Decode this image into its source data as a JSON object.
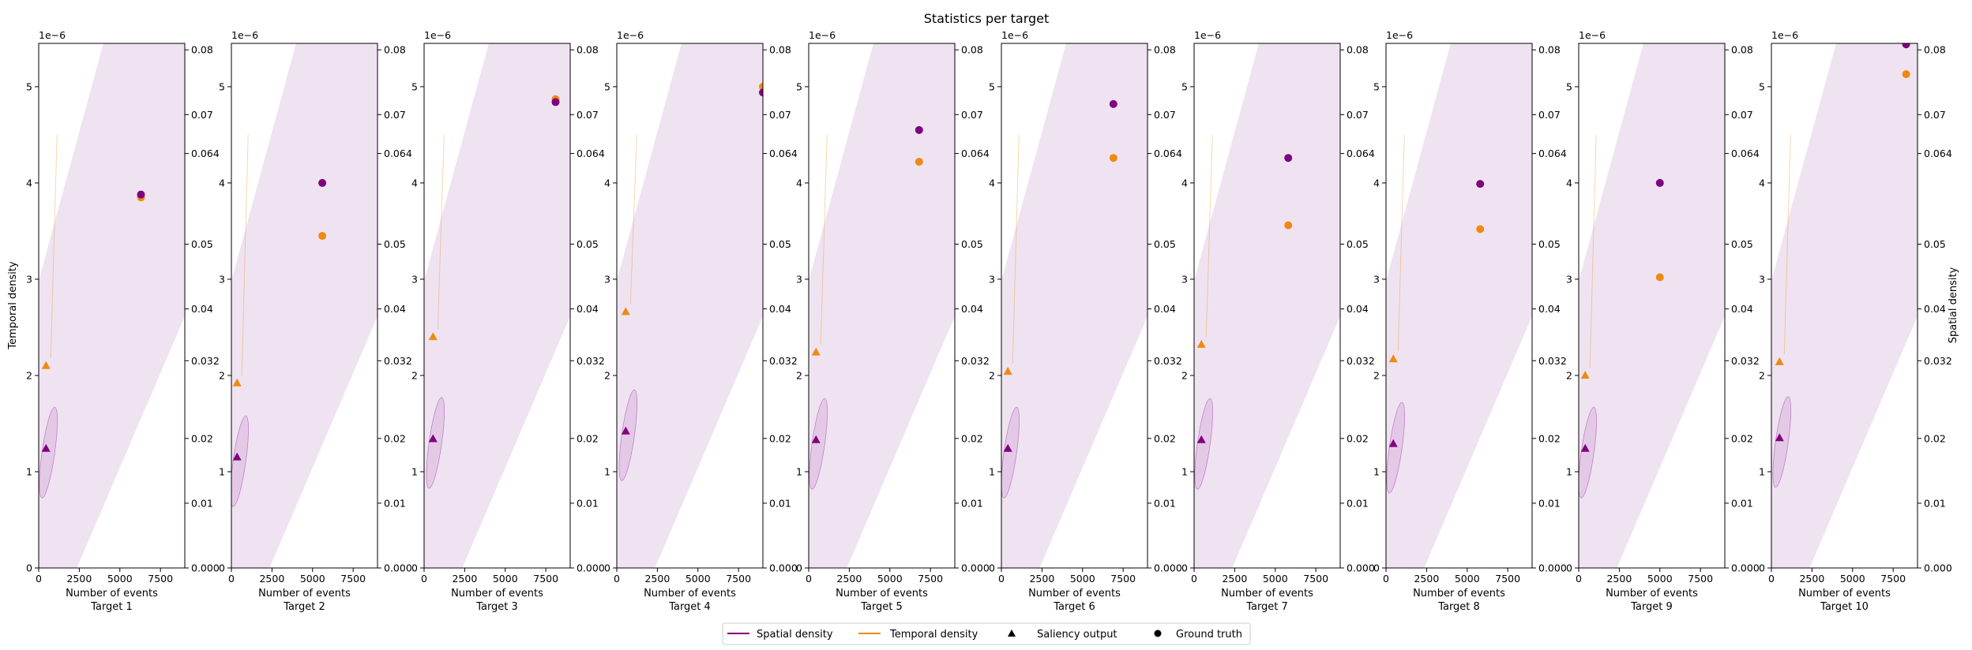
{
  "figure": {
    "title": "Statistics per target",
    "left_axis_label": "Temporal density",
    "right_axis_label": "Spatial density",
    "left_offset_label": "1e−6",
    "xlabel": "Number of events"
  },
  "legend": {
    "placement": "bottom-center",
    "items": [
      {
        "label": "Spatial density",
        "kind": "line",
        "color": "#800080"
      },
      {
        "label": "Temporal density",
        "kind": "line",
        "color": "#ee8a12"
      },
      {
        "label": "Saliency output",
        "kind": "triangle",
        "color": "#000000"
      },
      {
        "label": "Ground truth",
        "kind": "circle",
        "color": "#000000"
      }
    ]
  },
  "colors": {
    "spatial": "#800080",
    "temporal": "#ee8a12",
    "band": "#eee1f0"
  },
  "chart_data": {
    "type": "scatter",
    "subplot_count": 10,
    "xlim": [
      0,
      9000
    ],
    "xticks": [
      0,
      2500,
      5000,
      7500
    ],
    "left_ylim": [
      0,
      5.45
    ],
    "left_scale_exponent": -6,
    "left_yticks": [
      "0",
      "1",
      "2",
      "3",
      "4",
      "5"
    ],
    "right_ylim": [
      0,
      0.081
    ],
    "right_yticks": [
      "0.000",
      "0.01",
      "0.02",
      "0.032",
      "0.04",
      "0.05",
      "0.064",
      "0.07",
      "0.08"
    ],
    "right_ytick_values": [
      0,
      0.01,
      0.02,
      0.032,
      0.04,
      0.05,
      0.064,
      0.07,
      0.08
    ],
    "grid": false,
    "targets": [
      {
        "label": "Target 1",
        "saliency_x": 450,
        "saliency_temporal": 2.1,
        "saliency_spatial_axis": 1.24,
        "gt_x": 6300,
        "gt_temporal": 3.85,
        "gt_spatial_axis": 3.88
      },
      {
        "label": "Target 2",
        "saliency_x": 350,
        "saliency_temporal": 1.92,
        "saliency_spatial_axis": 1.15,
        "gt_x": 5600,
        "gt_temporal": 3.45,
        "gt_spatial_axis": 4.0
      },
      {
        "label": "Target 3",
        "saliency_x": 550,
        "saliency_temporal": 2.4,
        "saliency_spatial_axis": 1.34,
        "gt_x": 8100,
        "gt_temporal": 4.87,
        "gt_spatial_axis": 4.84
      },
      {
        "label": "Target 4",
        "saliency_x": 550,
        "saliency_temporal": 2.66,
        "saliency_spatial_axis": 1.42,
        "gt_x": 9000,
        "gt_temporal": 5.0,
        "gt_spatial_axis": 4.94
      },
      {
        "label": "Target 5",
        "saliency_x": 450,
        "saliency_temporal": 2.24,
        "saliency_spatial_axis": 1.33,
        "gt_x": 6800,
        "gt_temporal": 4.22,
        "gt_spatial_axis": 4.55
      },
      {
        "label": "Target 6",
        "saliency_x": 400,
        "saliency_temporal": 2.04,
        "saliency_spatial_axis": 1.24,
        "gt_x": 6900,
        "gt_temporal": 4.26,
        "gt_spatial_axis": 4.82
      },
      {
        "label": "Target 7",
        "saliency_x": 450,
        "saliency_temporal": 2.32,
        "saliency_spatial_axis": 1.33,
        "gt_x": 5800,
        "gt_temporal": 3.56,
        "gt_spatial_axis": 4.26
      },
      {
        "label": "Target 8",
        "saliency_x": 450,
        "saliency_temporal": 2.17,
        "saliency_spatial_axis": 1.29,
        "gt_x": 5800,
        "gt_temporal": 3.52,
        "gt_spatial_axis": 3.99
      },
      {
        "label": "Target 9",
        "saliency_x": 400,
        "saliency_temporal": 2.0,
        "saliency_spatial_axis": 1.24,
        "gt_x": 5000,
        "gt_temporal": 3.02,
        "gt_spatial_axis": 4.0
      },
      {
        "label": "Target 10",
        "saliency_x": 500,
        "saliency_temporal": 2.14,
        "saliency_spatial_axis": 1.35,
        "gt_x": 8300,
        "gt_temporal": 5.13,
        "gt_spatial_axis": 5.44
      }
    ]
  }
}
